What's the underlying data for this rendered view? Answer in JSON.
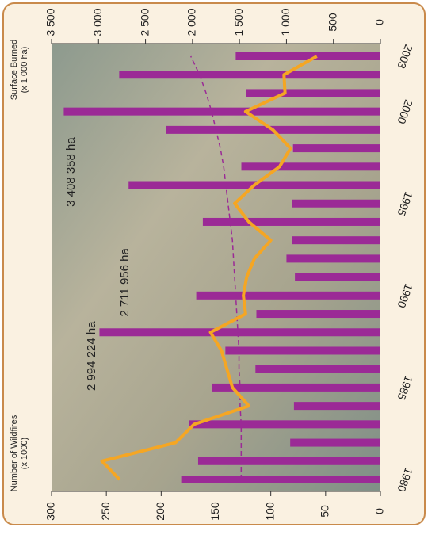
{
  "chart_data": {
    "type": "bar_line",
    "categories": [
      "1980",
      null,
      null,
      null,
      null,
      "1985",
      null,
      null,
      null,
      null,
      "1990",
      null,
      null,
      null,
      null,
      "1995",
      null,
      null,
      null,
      null,
      "2000",
      null,
      null,
      "2003"
    ],
    "series": [
      {
        "name": "Surface Burned",
        "sub": "(x 1 000 ha)",
        "color": "#9b2a96",
        "axis": "y2",
        "values": [
          2120,
          1940,
          960,
          2040,
          920,
          1790,
          1330,
          1650,
          2990,
          1320,
          1960,
          910,
          1000,
          940,
          1890,
          940,
          2680,
          1480,
          930,
          2280,
          3370,
          1430,
          2780,
          1540
        ]
      },
      {
        "name": "Number of Wildfires",
        "sub": "(x 1000)",
        "color": "#f5a623",
        "axis": "y",
        "values": [
          238,
          254,
          187,
          170,
          120,
          135,
          140,
          145,
          155,
          123,
          125,
          122,
          115,
          100,
          120,
          133,
          115,
          92,
          82,
          98,
          123,
          87,
          88,
          58
        ]
      }
    ],
    "trend": {
      "color": "#9b2a96",
      "dash": true,
      "values": [
        127,
        127,
        127,
        127,
        128,
        128,
        129,
        129,
        130,
        131,
        132,
        133,
        134,
        135,
        137,
        139,
        141,
        143,
        146,
        150,
        154,
        159,
        165,
        173
      ]
    },
    "ylim": [
      0,
      300
    ],
    "yticks": [
      0,
      50,
      100,
      150,
      200,
      250,
      300
    ],
    "y2lim": [
      0,
      3500
    ],
    "y2ticks": [
      0,
      500,
      {
        "value": 1000,
        "label": "1 000"
      },
      {
        "value": 1500,
        "label": "1 500"
      },
      {
        "value": 2000,
        "label": "2 000"
      },
      {
        "value": 2500,
        "label": "2 500"
      },
      {
        "value": 3000,
        "label": "3 000"
      },
      {
        "value": 3500,
        "label": "3 500"
      }
    ],
    "annotations": [
      {
        "text": "2 994 224 ha",
        "category": 8
      },
      {
        "text": "2 711 956 ha",
        "category": 12
      },
      {
        "text": "3 408 358 ha",
        "category": 18
      }
    ]
  }
}
